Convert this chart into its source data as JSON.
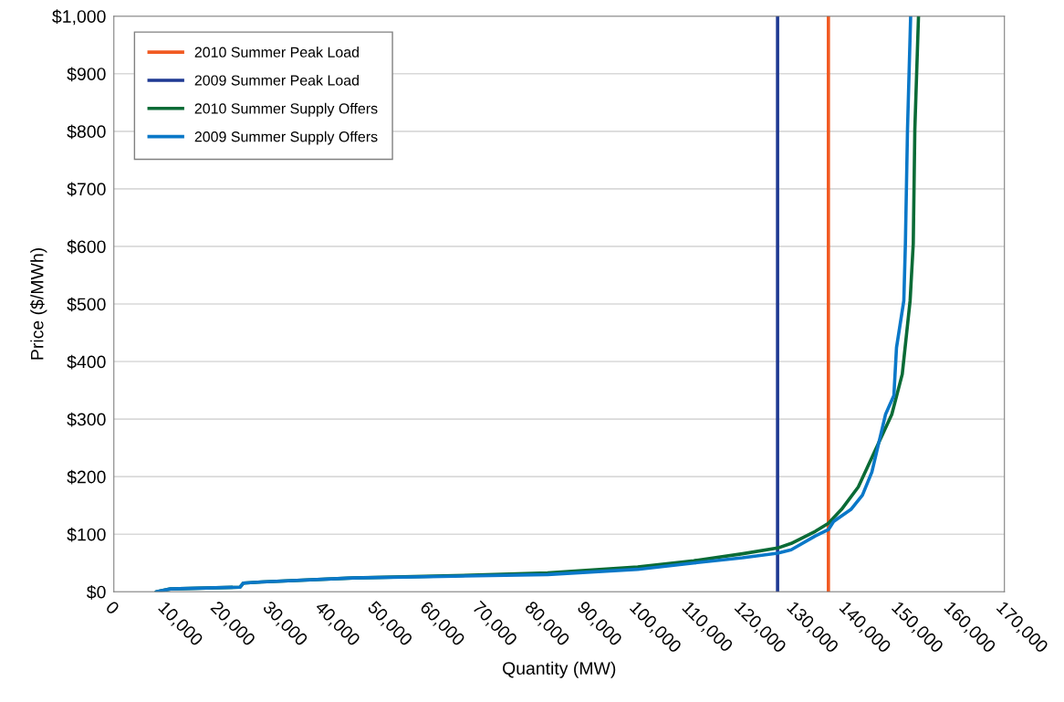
{
  "chart_data": {
    "type": "line",
    "xlabel": "Quantity (MW)",
    "ylabel": "Price ($/MWh)",
    "xlim": [
      0,
      170000
    ],
    "ylim": [
      0,
      1000
    ],
    "xticks": [
      {
        "value": 0,
        "label": "0"
      },
      {
        "value": 10000,
        "label": "10,000"
      },
      {
        "value": 20000,
        "label": "20,000"
      },
      {
        "value": 30000,
        "label": "30,000"
      },
      {
        "value": 40000,
        "label": "40,000"
      },
      {
        "value": 50000,
        "label": "50,000"
      },
      {
        "value": 60000,
        "label": "60,000"
      },
      {
        "value": 70000,
        "label": "70,000"
      },
      {
        "value": 80000,
        "label": "80,000"
      },
      {
        "value": 90000,
        "label": "90,000"
      },
      {
        "value": 100000,
        "label": "100,000"
      },
      {
        "value": 110000,
        "label": "110,000"
      },
      {
        "value": 120000,
        "label": "120,000"
      },
      {
        "value": 130000,
        "label": "130,000"
      },
      {
        "value": 140000,
        "label": "140,000"
      },
      {
        "value": 150000,
        "label": "150,000"
      },
      {
        "value": 160000,
        "label": "160,000"
      },
      {
        "value": 170000,
        "label": "170,000"
      }
    ],
    "yticks": [
      {
        "value": 0,
        "label": "$0"
      },
      {
        "value": 100,
        "label": "$100"
      },
      {
        "value": 200,
        "label": "$200"
      },
      {
        "value": 300,
        "label": "$300"
      },
      {
        "value": 400,
        "label": "$400"
      },
      {
        "value": 500,
        "label": "$500"
      },
      {
        "value": 600,
        "label": "$600"
      },
      {
        "value": 700,
        "label": "$700"
      },
      {
        "value": 800,
        "label": "$800"
      },
      {
        "value": 900,
        "label": "$900"
      },
      {
        "value": 1000,
        "label": "$1,000"
      }
    ],
    "grid": "y",
    "legend": "top left",
    "marker": "none",
    "line_style": "solid",
    "series": [
      {
        "name": "2010 Summer Peak Load",
        "color": "#f15a22",
        "x": [
          136400,
          136400
        ],
        "values": [
          0,
          1000
        ]
      },
      {
        "name": "2009 Summer Peak Load",
        "color": "#1f3a93",
        "x": [
          126700,
          126700
        ],
        "values": [
          0,
          1000
        ]
      },
      {
        "name": "2010 Summer Supply Offers",
        "color": "#0a6b36",
        "x": [
          8100,
          10800,
          24100,
          24700,
          28200,
          45600,
          65000,
          82800,
          100000,
          110700,
          120000,
          126700,
          129300,
          133900,
          136400,
          138900,
          142100,
          145100,
          148500,
          150500,
          152000,
          152600,
          152900,
          153600
        ],
        "values": [
          0,
          5,
          8,
          15,
          17,
          24,
          28,
          33,
          43,
          54,
          66,
          76,
          84,
          105,
          119,
          143,
          182,
          241,
          308,
          378,
          506,
          605,
          803,
          1000
        ]
      },
      {
        "name": "2009 Summer Supply Offers",
        "color": "#0a78c8",
        "x": [
          8100,
          10800,
          24100,
          24700,
          28200,
          45600,
          65000,
          82800,
          100000,
          110700,
          120000,
          126700,
          129300,
          133900,
          136400,
          137400,
          140700,
          142900,
          144700,
          147300,
          148900,
          149400,
          150800,
          151100,
          151500,
          152100
        ],
        "values": [
          0,
          5,
          8,
          15,
          17,
          24,
          27,
          30,
          39,
          50,
          59,
          67,
          73,
          97,
          108,
          122,
          143,
          168,
          208,
          308,
          341,
          424,
          506,
          605,
          803,
          1000
        ]
      }
    ]
  }
}
